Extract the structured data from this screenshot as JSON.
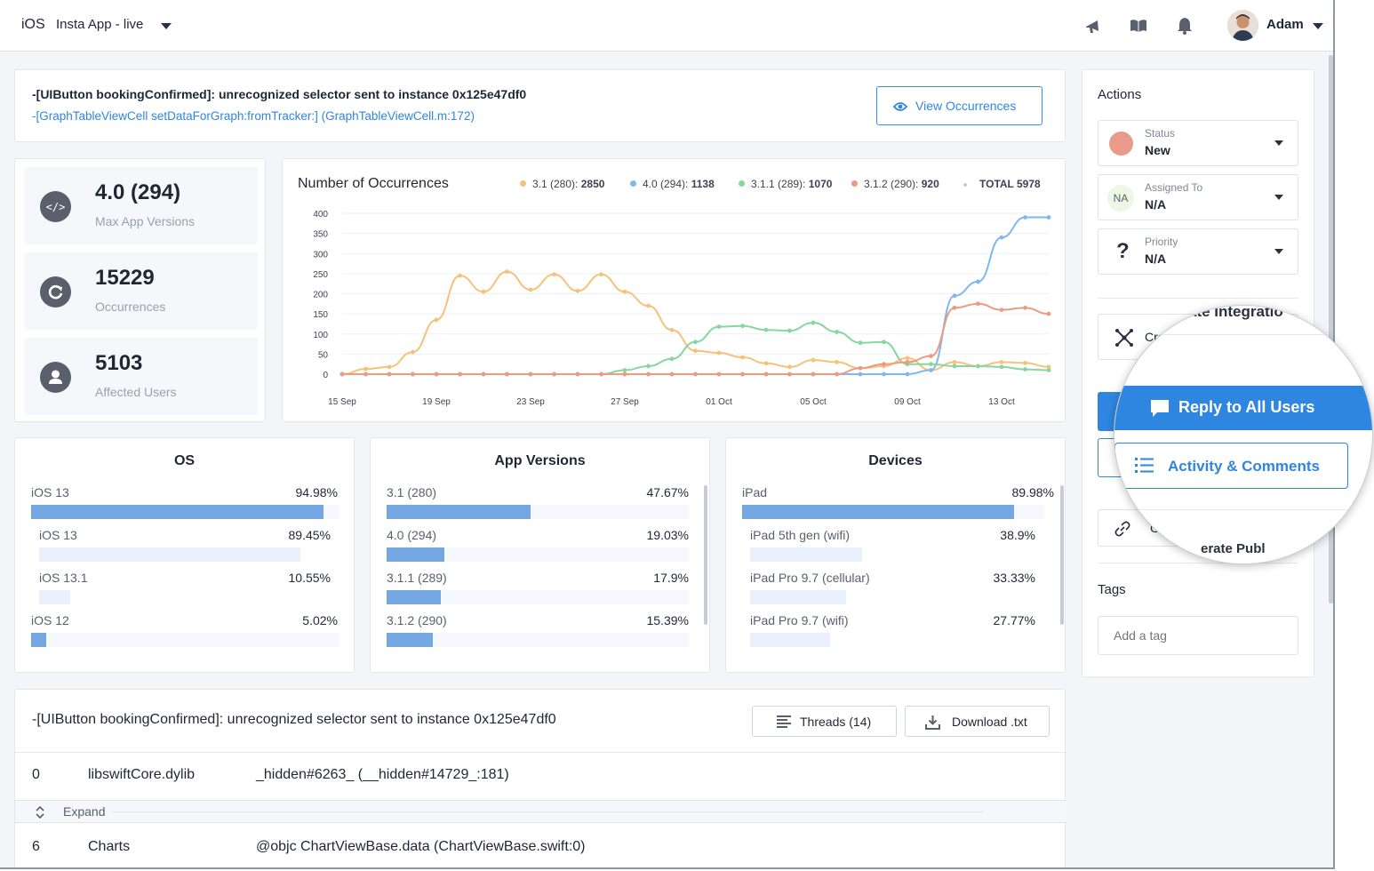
{
  "topbar": {
    "platform": "iOS",
    "app_name": "Insta App - live",
    "user_name": "Adam"
  },
  "error": {
    "title": "-[UIButton bookingConfirmed]: unrecognized selector sent to instance 0x125e47df0",
    "subtitle": "-[GraphTableViewCell setDataForGraph:fromTracker:] (GraphTableViewCell.m:172)",
    "view_button": "View Occurrences"
  },
  "stats": [
    {
      "value": "4.0 (294)",
      "label": "Max App Versions",
      "icon": "code-icon"
    },
    {
      "value": "15229",
      "label": "Occurrences",
      "icon": "refresh-icon"
    },
    {
      "value": "5103",
      "label": "Affected Users",
      "icon": "user-icon"
    }
  ],
  "chart": {
    "title": "Number of Occurrences",
    "legend": [
      {
        "label": "3.1 (280):",
        "value": "2850",
        "color": "#f5c27a"
      },
      {
        "label": "4.0 (294):",
        "value": "1138",
        "color": "#7fb8ee"
      },
      {
        "label": "3.1.1 (289):",
        "value": "1070",
        "color": "#86d6a0"
      },
      {
        "label": "3.1.2 (290):",
        "value": "920",
        "color": "#ec9a80"
      }
    ],
    "total_label": "TOTAL 5978",
    "x_ticks": [
      "15 Sep",
      "19 Sep",
      "23 Sep",
      "27 Sep",
      "01 Oct",
      "05 Oct",
      "09 Oct",
      "13 Oct"
    ],
    "y_ticks": [
      "400",
      "350",
      "300",
      "250",
      "200",
      "150",
      "100",
      "50",
      "0"
    ]
  },
  "chart_data": {
    "type": "line",
    "title": "Number of Occurrences",
    "xlabel": "",
    "ylabel": "",
    "ylim": [
      0,
      400
    ],
    "x": [
      "15 Sep",
      "16 Sep",
      "17 Sep",
      "18 Sep",
      "19 Sep",
      "20 Sep",
      "21 Sep",
      "22 Sep",
      "23 Sep",
      "24 Sep",
      "25 Sep",
      "26 Sep",
      "27 Sep",
      "28 Sep",
      "29 Sep",
      "30 Sep",
      "01 Oct",
      "02 Oct",
      "03 Oct",
      "04 Oct",
      "05 Oct",
      "06 Oct",
      "07 Oct",
      "08 Oct",
      "09 Oct",
      "10 Oct",
      "11 Oct",
      "12 Oct",
      "13 Oct",
      "14 Oct",
      "15 Oct"
    ],
    "series": [
      {
        "name": "3.1 (280)",
        "color": "#f5c27a",
        "values": [
          0,
          13,
          18,
          55,
          135,
          245,
          205,
          255,
          210,
          248,
          207,
          248,
          205,
          170,
          110,
          58,
          53,
          42,
          27,
          18,
          35,
          30,
          15,
          20,
          40,
          10,
          30,
          20,
          30,
          28,
          18
        ]
      },
      {
        "name": "4.0 (294)",
        "color": "#7fb8ee",
        "values": [
          0,
          0,
          0,
          0,
          0,
          0,
          0,
          0,
          0,
          0,
          0,
          0,
          0,
          0,
          0,
          0,
          0,
          0,
          0,
          0,
          0,
          0,
          0,
          0,
          0,
          10,
          195,
          230,
          340,
          390,
          390
        ]
      },
      {
        "name": "3.1.1 (289)",
        "color": "#86d6a0",
        "values": [
          0,
          0,
          0,
          0,
          0,
          0,
          0,
          0,
          0,
          0,
          0,
          0,
          10,
          20,
          38,
          80,
          118,
          120,
          110,
          108,
          128,
          105,
          78,
          80,
          25,
          25,
          20,
          20,
          18,
          12,
          10
        ]
      },
      {
        "name": "3.1.2 (290)",
        "color": "#ec9a80",
        "values": [
          0,
          0,
          0,
          0,
          0,
          0,
          0,
          0,
          0,
          0,
          0,
          0,
          0,
          0,
          0,
          0,
          0,
          0,
          0,
          0,
          0,
          0,
          15,
          25,
          30,
          45,
          165,
          175,
          160,
          165,
          150
        ]
      }
    ]
  },
  "distributions": {
    "os": {
      "title": "OS",
      "rows": [
        {
          "label": "iOS 13",
          "value": "94.98%",
          "pct": 94.98,
          "level": 0
        },
        {
          "label": "iOS 13",
          "value": "89.45%",
          "pct": 89.45,
          "level": 1
        },
        {
          "label": "iOS 13.1",
          "value": "10.55%",
          "pct": 10.55,
          "level": 1
        },
        {
          "label": "iOS 12",
          "value": "5.02%",
          "pct": 5.02,
          "level": 0
        }
      ]
    },
    "app_versions": {
      "title": "App Versions",
      "rows": [
        {
          "label": "3.1 (280)",
          "value": "47.67%",
          "pct": 47.67
        },
        {
          "label": "4.0 (294)",
          "value": "19.03%",
          "pct": 19.03
        },
        {
          "label": "3.1.1 (289)",
          "value": "17.9%",
          "pct": 17.9
        },
        {
          "label": "3.1.2 (290)",
          "value": "15.39%",
          "pct": 15.39
        }
      ]
    },
    "devices": {
      "title": "Devices",
      "rows": [
        {
          "label": "iPad",
          "value": "89.98%",
          "pct": 89.98,
          "level": 0
        },
        {
          "label": "iPad 5th gen (wifi)",
          "value": "38.9%",
          "pct": 38.9,
          "level": 1
        },
        {
          "label": "iPad Pro 9.7 (cellular)",
          "value": "33.33%",
          "pct": 33.33,
          "level": 1
        },
        {
          "label": "iPad Pro 9.7 (wifi)",
          "value": "27.77%",
          "pct": 27.77,
          "level": 1
        }
      ]
    }
  },
  "stacktrace": {
    "title": "-[UIButton bookingConfirmed]: unrecognized selector sent to instance 0x125e47df0",
    "threads_button": "Threads (14)",
    "download_button": "Download .txt",
    "frames": [
      {
        "index": "0",
        "module": "libswiftCore.dylib",
        "symbol": "_hidden#6263_ (__hidden#14729_:181)"
      },
      {
        "index": "6",
        "module": "Charts",
        "symbol": "@objc ChartViewBase.data (ChartViewBase.swift:0)"
      }
    ],
    "expand_label": "Expand"
  },
  "actions": {
    "title": "Actions",
    "status_key": "Status",
    "status_value": "New",
    "status_color": "#ea9a88",
    "assigned_key": "Assigned To",
    "assigned_value": "N/A",
    "assigned_avatar": "NA",
    "priority_key": "Priority",
    "priority_value": "N/A",
    "priority_icon": "?",
    "integration_prefix": "Cre",
    "integration_peek": "ate Integratio",
    "public_prefix": "G",
    "public_peek": "erate Publ",
    "reply_button": "Reply to All Users",
    "activity_button": "Activity & Comments",
    "tags_title": "Tags",
    "tag_placeholder": "Add a tag"
  }
}
